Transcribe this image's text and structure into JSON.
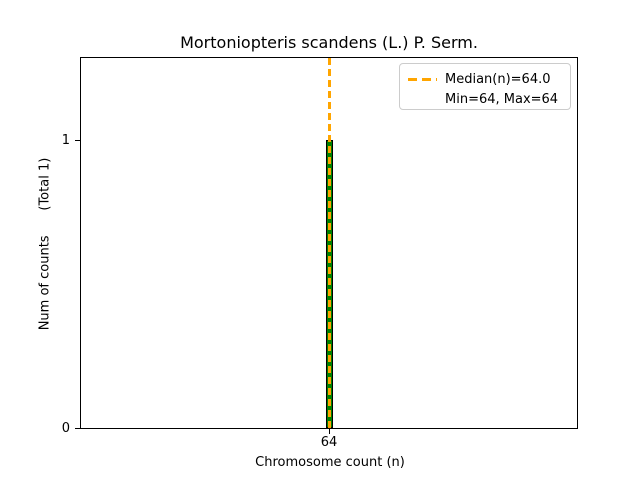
{
  "chart_data": {
    "type": "bar",
    "title": "Mortoniopteris scandens (L.) P. Serm.",
    "xlabel": "Chromosome count (n)",
    "ylabel": "Num of counts      (Total 1)",
    "categories": [
      "64"
    ],
    "values": [
      1
    ],
    "xticks": [
      "64"
    ],
    "yticks": {
      "zero": "0",
      "one": "1"
    },
    "ylim": [
      0,
      1.3
    ],
    "grid": false,
    "bar": {
      "x": 64,
      "height": 1,
      "fill_color": "#008000",
      "edge_color": "#000000"
    },
    "median_line": {
      "value": 64.0,
      "color": "#ffa500",
      "style": "dashed",
      "orientation": "vertical"
    },
    "stats": {
      "median": "64.0",
      "min": "64",
      "max": "64",
      "total_counts": 1
    },
    "legend": {
      "position": "upper-right",
      "entries": [
        {
          "handle": "orange-dashed-line",
          "label": "Median(n)=64.0"
        },
        {
          "handle": "none",
          "label": "Min=64, Max=64"
        }
      ]
    }
  }
}
